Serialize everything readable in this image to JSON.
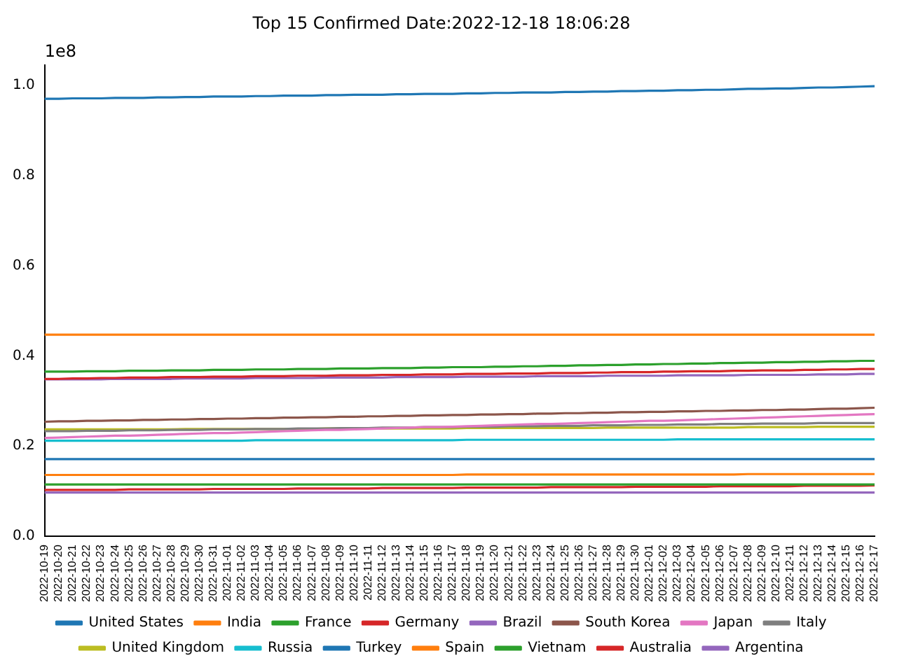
{
  "chart_data": {
    "type": "line",
    "title": "Top 15 Confirmed Date:2022-12-18 18:06:28",
    "annotations": [
      "1e8"
    ],
    "categories": [
      "2022-10-19",
      "2022-10-20",
      "2022-10-21",
      "2022-10-22",
      "2022-10-23",
      "2022-10-24",
      "2022-10-25",
      "2022-10-26",
      "2022-10-27",
      "2022-10-28",
      "2022-10-29",
      "2022-10-30",
      "2022-10-31",
      "2022-11-01",
      "2022-11-02",
      "2022-11-03",
      "2022-11-04",
      "2022-11-05",
      "2022-11-06",
      "2022-11-07",
      "2022-11-08",
      "2022-11-09",
      "2022-11-10",
      "2022-11-11",
      "2022-11-12",
      "2022-11-13",
      "2022-11-14",
      "2022-11-15",
      "2022-11-16",
      "2022-11-17",
      "2022-11-18",
      "2022-11-19",
      "2022-11-20",
      "2022-11-21",
      "2022-11-22",
      "2022-11-23",
      "2022-11-24",
      "2022-11-25",
      "2022-11-26",
      "2022-11-27",
      "2022-11-28",
      "2022-11-29",
      "2022-11-30",
      "2022-12-01",
      "2022-12-02",
      "2022-12-03",
      "2022-12-04",
      "2022-12-05",
      "2022-12-06",
      "2022-12-07",
      "2022-12-08",
      "2022-12-09",
      "2022-12-10",
      "2022-12-11",
      "2022-12-12",
      "2022-12-13",
      "2022-12-14",
      "2022-12-15",
      "2022-12-16",
      "2022-12-17"
    ],
    "ylim": [
      0,
      1.045
    ],
    "yticks": [
      {
        "value": 0,
        "label": "0.0"
      },
      {
        "value": 0.2,
        "label": "0.2"
      },
      {
        "value": 0.4,
        "label": "0.4"
      },
      {
        "value": 0.6,
        "label": "0.6"
      },
      {
        "value": 0.8,
        "label": "0.8"
      },
      {
        "value": 1,
        "label": "1.0"
      }
    ],
    "grid": false,
    "legend": "bottom",
    "line_style": "solid",
    "series": [
      {
        "name": "United States",
        "color": "#1f77b4",
        "values": [
          0.97,
          0.97,
          0.971,
          0.971,
          0.971,
          0.972,
          0.972,
          0.972,
          0.973,
          0.973,
          0.974,
          0.974,
          0.975,
          0.975,
          0.975,
          0.976,
          0.976,
          0.977,
          0.977,
          0.977,
          0.978,
          0.978,
          0.979,
          0.979,
          0.979,
          0.98,
          0.98,
          0.981,
          0.981,
          0.981,
          0.982,
          0.982,
          0.983,
          0.983,
          0.984,
          0.984,
          0.984,
          0.985,
          0.985,
          0.986,
          0.986,
          0.987,
          0.987,
          0.988,
          0.988,
          0.989,
          0.989,
          0.99,
          0.99,
          0.991,
          0.992,
          0.992,
          0.993,
          0.993,
          0.994,
          0.995,
          0.995,
          0.996,
          0.997,
          0.998
        ]
      },
      {
        "name": "India",
        "color": "#ff7f0e",
        "values": [
          0.447,
          0.447,
          0.447,
          0.447,
          0.447,
          0.447,
          0.447,
          0.447,
          0.447,
          0.447,
          0.447,
          0.447,
          0.447,
          0.447,
          0.447,
          0.447,
          0.447,
          0.447,
          0.447,
          0.447,
          0.447,
          0.447,
          0.447,
          0.447,
          0.447,
          0.447,
          0.447,
          0.447,
          0.447,
          0.447,
          0.447,
          0.447,
          0.447,
          0.447,
          0.447,
          0.447,
          0.447,
          0.447,
          0.447,
          0.447,
          0.447,
          0.447,
          0.447,
          0.447,
          0.447,
          0.447,
          0.447,
          0.447,
          0.447,
          0.447,
          0.447,
          0.447,
          0.447,
          0.447,
          0.447,
          0.447,
          0.447,
          0.447,
          0.447,
          0.447
        ]
      },
      {
        "name": "France",
        "color": "#2ca02c",
        "values": [
          0.365,
          0.365,
          0.365,
          0.366,
          0.366,
          0.366,
          0.367,
          0.367,
          0.367,
          0.368,
          0.368,
          0.368,
          0.369,
          0.369,
          0.369,
          0.37,
          0.37,
          0.37,
          0.371,
          0.371,
          0.371,
          0.372,
          0.372,
          0.372,
          0.373,
          0.373,
          0.373,
          0.374,
          0.374,
          0.375,
          0.375,
          0.375,
          0.376,
          0.376,
          0.377,
          0.377,
          0.378,
          0.378,
          0.379,
          0.379,
          0.38,
          0.38,
          0.381,
          0.381,
          0.382,
          0.382,
          0.383,
          0.383,
          0.384,
          0.384,
          0.385,
          0.385,
          0.386,
          0.386,
          0.387,
          0.387,
          0.388,
          0.388,
          0.389,
          0.389
        ]
      },
      {
        "name": "Germany",
        "color": "#d62728",
        "values": [
          0.349,
          0.349,
          0.35,
          0.35,
          0.351,
          0.351,
          0.352,
          0.352,
          0.352,
          0.353,
          0.353,
          0.353,
          0.354,
          0.354,
          0.354,
          0.355,
          0.355,
          0.355,
          0.356,
          0.356,
          0.356,
          0.357,
          0.357,
          0.357,
          0.358,
          0.358,
          0.358,
          0.359,
          0.359,
          0.359,
          0.36,
          0.36,
          0.36,
          0.361,
          0.361,
          0.361,
          0.362,
          0.362,
          0.362,
          0.363,
          0.363,
          0.364,
          0.364,
          0.364,
          0.365,
          0.365,
          0.366,
          0.366,
          0.366,
          0.367,
          0.367,
          0.368,
          0.368,
          0.368,
          0.369,
          0.369,
          0.37,
          0.37,
          0.371,
          0.371
        ]
      },
      {
        "name": "Brazil",
        "color": "#9467bd",
        "values": [
          0.348,
          0.348,
          0.348,
          0.348,
          0.348,
          0.349,
          0.349,
          0.349,
          0.349,
          0.349,
          0.35,
          0.35,
          0.35,
          0.35,
          0.35,
          0.351,
          0.351,
          0.351,
          0.351,
          0.351,
          0.352,
          0.352,
          0.352,
          0.352,
          0.352,
          0.353,
          0.353,
          0.353,
          0.353,
          0.353,
          0.354,
          0.354,
          0.354,
          0.354,
          0.354,
          0.355,
          0.355,
          0.355,
          0.355,
          0.355,
          0.356,
          0.356,
          0.356,
          0.356,
          0.356,
          0.357,
          0.357,
          0.357,
          0.357,
          0.357,
          0.358,
          0.358,
          0.358,
          0.358,
          0.358,
          0.359,
          0.359,
          0.359,
          0.36,
          0.36
        ]
      },
      {
        "name": "South Korea",
        "color": "#8c564b",
        "values": [
          0.254,
          0.255,
          0.255,
          0.256,
          0.256,
          0.257,
          0.257,
          0.258,
          0.258,
          0.259,
          0.259,
          0.26,
          0.26,
          0.261,
          0.261,
          0.262,
          0.262,
          0.263,
          0.263,
          0.264,
          0.264,
          0.265,
          0.265,
          0.266,
          0.266,
          0.267,
          0.267,
          0.268,
          0.268,
          0.269,
          0.269,
          0.27,
          0.27,
          0.271,
          0.271,
          0.272,
          0.272,
          0.273,
          0.273,
          0.274,
          0.274,
          0.275,
          0.275,
          0.276,
          0.276,
          0.277,
          0.277,
          0.278,
          0.278,
          0.279,
          0.279,
          0.28,
          0.28,
          0.281,
          0.281,
          0.282,
          0.283,
          0.283,
          0.284,
          0.285
        ]
      },
      {
        "name": "Japan",
        "color": "#e377c2",
        "values": [
          0.218,
          0.219,
          0.22,
          0.221,
          0.222,
          0.223,
          0.223,
          0.224,
          0.225,
          0.226,
          0.227,
          0.228,
          0.229,
          0.229,
          0.23,
          0.231,
          0.232,
          0.233,
          0.234,
          0.235,
          0.236,
          0.236,
          0.237,
          0.238,
          0.239,
          0.24,
          0.241,
          0.242,
          0.242,
          0.243,
          0.244,
          0.245,
          0.246,
          0.247,
          0.248,
          0.249,
          0.249,
          0.25,
          0.251,
          0.252,
          0.253,
          0.254,
          0.255,
          0.256,
          0.256,
          0.257,
          0.258,
          0.259,
          0.26,
          0.261,
          0.262,
          0.263,
          0.264,
          0.265,
          0.266,
          0.267,
          0.268,
          0.269,
          0.27,
          0.271
        ]
      },
      {
        "name": "Italy",
        "color": "#7f7f7f",
        "values": [
          0.233,
          0.233,
          0.233,
          0.234,
          0.234,
          0.234,
          0.235,
          0.235,
          0.235,
          0.236,
          0.236,
          0.236,
          0.237,
          0.237,
          0.237,
          0.238,
          0.238,
          0.238,
          0.239,
          0.239,
          0.239,
          0.24,
          0.24,
          0.24,
          0.241,
          0.241,
          0.241,
          0.242,
          0.242,
          0.242,
          0.243,
          0.243,
          0.243,
          0.244,
          0.244,
          0.244,
          0.245,
          0.245,
          0.245,
          0.246,
          0.246,
          0.246,
          0.247,
          0.247,
          0.247,
          0.248,
          0.248,
          0.248,
          0.249,
          0.249,
          0.249,
          0.25,
          0.25,
          0.25,
          0.25,
          0.251,
          0.251,
          0.251,
          0.251,
          0.251
        ]
      },
      {
        "name": "United Kingdom",
        "color": "#bcbd22",
        "values": [
          0.237,
          0.237,
          0.237,
          0.237,
          0.237,
          0.237,
          0.237,
          0.237,
          0.237,
          0.237,
          0.238,
          0.238,
          0.238,
          0.238,
          0.238,
          0.238,
          0.238,
          0.238,
          0.238,
          0.238,
          0.239,
          0.239,
          0.239,
          0.239,
          0.239,
          0.239,
          0.239,
          0.239,
          0.239,
          0.239,
          0.24,
          0.24,
          0.24,
          0.24,
          0.24,
          0.24,
          0.24,
          0.24,
          0.24,
          0.24,
          0.241,
          0.241,
          0.241,
          0.241,
          0.241,
          0.241,
          0.241,
          0.241,
          0.241,
          0.241,
          0.242,
          0.242,
          0.242,
          0.242,
          0.242,
          0.243,
          0.243,
          0.243,
          0.243,
          0.243
        ]
      },
      {
        "name": "Russia",
        "color": "#17becf",
        "values": [
          0.212,
          0.212,
          0.212,
          0.212,
          0.212,
          0.212,
          0.212,
          0.212,
          0.212,
          0.212,
          0.212,
          0.212,
          0.212,
          0.212,
          0.212,
          0.213,
          0.213,
          0.213,
          0.213,
          0.213,
          0.213,
          0.213,
          0.213,
          0.213,
          0.213,
          0.213,
          0.213,
          0.213,
          0.213,
          0.213,
          0.214,
          0.214,
          0.214,
          0.214,
          0.214,
          0.214,
          0.214,
          0.214,
          0.214,
          0.214,
          0.214,
          0.214,
          0.214,
          0.214,
          0.214,
          0.215,
          0.215,
          0.215,
          0.215,
          0.215,
          0.215,
          0.215,
          0.215,
          0.215,
          0.215,
          0.215,
          0.215,
          0.215,
          0.215,
          0.215
        ]
      },
      {
        "name": "Turkey",
        "color": "#1f77b4",
        "values": [
          0.171,
          0.171,
          0.171,
          0.171,
          0.171,
          0.171,
          0.171,
          0.171,
          0.171,
          0.171,
          0.171,
          0.171,
          0.171,
          0.171,
          0.171,
          0.171,
          0.171,
          0.171,
          0.171,
          0.171,
          0.171,
          0.171,
          0.171,
          0.171,
          0.171,
          0.171,
          0.171,
          0.171,
          0.171,
          0.171,
          0.171,
          0.171,
          0.171,
          0.171,
          0.171,
          0.171,
          0.171,
          0.171,
          0.171,
          0.171,
          0.171,
          0.171,
          0.171,
          0.171,
          0.171,
          0.171,
          0.171,
          0.171,
          0.171,
          0.171,
          0.171,
          0.171,
          0.171,
          0.171,
          0.171,
          0.171,
          0.171,
          0.171,
          0.171,
          0.171
        ]
      },
      {
        "name": "Spain",
        "color": "#ff7f0e",
        "values": [
          0.136,
          0.136,
          0.136,
          0.136,
          0.136,
          0.136,
          0.136,
          0.136,
          0.136,
          0.136,
          0.136,
          0.136,
          0.136,
          0.136,
          0.136,
          0.136,
          0.136,
          0.136,
          0.136,
          0.136,
          0.136,
          0.136,
          0.136,
          0.136,
          0.136,
          0.136,
          0.136,
          0.136,
          0.136,
          0.136,
          0.137,
          0.137,
          0.137,
          0.137,
          0.137,
          0.137,
          0.137,
          0.137,
          0.137,
          0.137,
          0.137,
          0.137,
          0.137,
          0.137,
          0.137,
          0.137,
          0.137,
          0.137,
          0.137,
          0.137,
          0.138,
          0.138,
          0.138,
          0.138,
          0.138,
          0.138,
          0.138,
          0.138,
          0.138,
          0.138
        ]
      },
      {
        "name": "Vietnam",
        "color": "#2ca02c",
        "values": [
          0.115,
          0.115,
          0.115,
          0.115,
          0.115,
          0.115,
          0.115,
          0.115,
          0.115,
          0.115,
          0.115,
          0.115,
          0.115,
          0.115,
          0.115,
          0.115,
          0.115,
          0.115,
          0.115,
          0.115,
          0.115,
          0.115,
          0.115,
          0.115,
          0.115,
          0.115,
          0.115,
          0.115,
          0.115,
          0.115,
          0.115,
          0.115,
          0.115,
          0.115,
          0.115,
          0.115,
          0.115,
          0.115,
          0.115,
          0.115,
          0.115,
          0.115,
          0.115,
          0.115,
          0.115,
          0.115,
          0.115,
          0.115,
          0.115,
          0.115,
          0.115,
          0.115,
          0.115,
          0.115,
          0.115,
          0.115,
          0.115,
          0.115,
          0.115,
          0.115
        ]
      },
      {
        "name": "Australia",
        "color": "#d62728",
        "values": [
          0.103,
          0.103,
          0.103,
          0.103,
          0.103,
          0.103,
          0.104,
          0.104,
          0.104,
          0.104,
          0.104,
          0.104,
          0.105,
          0.105,
          0.105,
          0.105,
          0.105,
          0.105,
          0.106,
          0.106,
          0.106,
          0.106,
          0.106,
          0.106,
          0.107,
          0.107,
          0.107,
          0.107,
          0.107,
          0.107,
          0.108,
          0.108,
          0.108,
          0.108,
          0.108,
          0.108,
          0.109,
          0.109,
          0.109,
          0.109,
          0.109,
          0.109,
          0.11,
          0.11,
          0.11,
          0.11,
          0.11,
          0.11,
          0.111,
          0.111,
          0.111,
          0.111,
          0.111,
          0.111,
          0.112,
          0.112,
          0.112,
          0.112,
          0.112,
          0.113
        ]
      },
      {
        "name": "Argentina",
        "color": "#9467bd",
        "values": [
          0.097,
          0.097,
          0.097,
          0.097,
          0.097,
          0.097,
          0.097,
          0.097,
          0.097,
          0.097,
          0.097,
          0.097,
          0.097,
          0.097,
          0.097,
          0.097,
          0.097,
          0.097,
          0.097,
          0.097,
          0.097,
          0.097,
          0.097,
          0.097,
          0.097,
          0.097,
          0.097,
          0.097,
          0.097,
          0.097,
          0.097,
          0.097,
          0.097,
          0.097,
          0.097,
          0.097,
          0.097,
          0.097,
          0.097,
          0.097,
          0.097,
          0.097,
          0.097,
          0.097,
          0.097,
          0.097,
          0.097,
          0.097,
          0.097,
          0.097,
          0.097,
          0.097,
          0.097,
          0.097,
          0.097,
          0.097,
          0.097,
          0.097,
          0.097,
          0.097
        ]
      }
    ]
  }
}
